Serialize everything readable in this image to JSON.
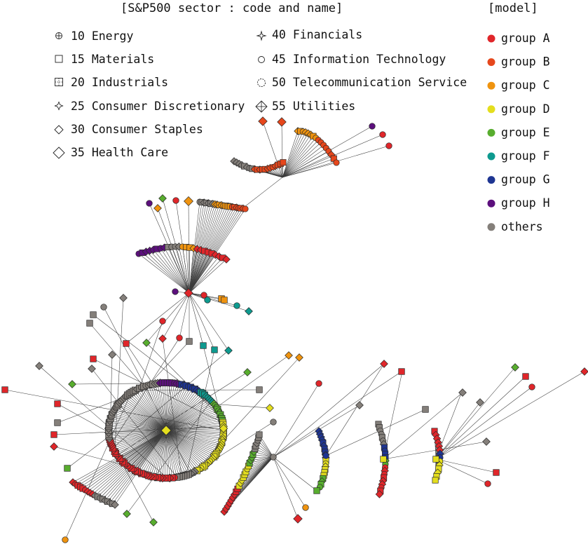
{
  "legend": {
    "sector_title": "[S&P500 sector : code and name]",
    "model_title": "[model]",
    "sectors": [
      {
        "code": "10",
        "name": "Energy",
        "icon": "circle-plus-icon"
      },
      {
        "code": "15",
        "name": "Materials",
        "icon": "square-icon"
      },
      {
        "code": "20",
        "name": "Industrials",
        "icon": "square-dotted-icon"
      },
      {
        "code": "25",
        "name": "Consumer Discretionary",
        "icon": "star-diamond-icon"
      },
      {
        "code": "30",
        "name": "Consumer Staples",
        "icon": "diamond-icon"
      },
      {
        "code": "35",
        "name": "Health Care",
        "icon": "large-diamond-icon"
      },
      {
        "code": "40",
        "name": "Financials",
        "icon": "four-point-star-icon"
      },
      {
        "code": "45",
        "name": "Information Technology",
        "icon": "circle-icon"
      },
      {
        "code": "50",
        "name": "Telecommunication Service",
        "icon": "dotted-circle-icon"
      },
      {
        "code": "55",
        "name": "Utilities",
        "icon": "diamond-cross-icon"
      }
    ],
    "models": [
      {
        "name": "group A",
        "color": "#e0262a"
      },
      {
        "name": "group B",
        "color": "#e6471c"
      },
      {
        "name": "group C",
        "color": "#ef930f"
      },
      {
        "name": "group D",
        "color": "#e4de1e"
      },
      {
        "name": "group E",
        "color": "#58ad2e"
      },
      {
        "name": "group F",
        "color": "#0e9a8f"
      },
      {
        "name": "group G",
        "color": "#1e3592"
      },
      {
        "name": "group H",
        "color": "#5c0f7d"
      },
      {
        "name": "others",
        "color": "#847f7a"
      }
    ]
  }
}
